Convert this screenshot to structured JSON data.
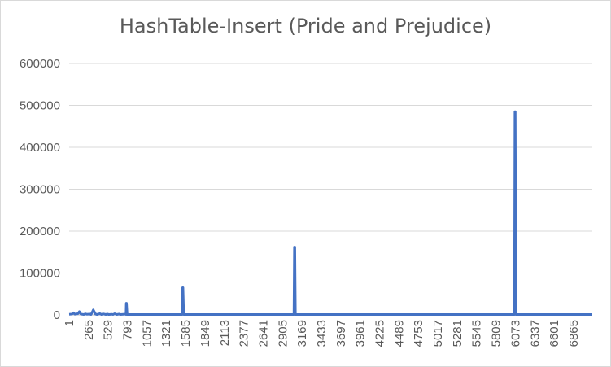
{
  "chart_data": {
    "type": "line",
    "title": "HashTable-Insert (Pride and Prejudice)",
    "xlabel": "",
    "ylabel": "",
    "ylim": [
      0,
      600000
    ],
    "y_ticks": [
      0,
      100000,
      200000,
      300000,
      400000,
      500000,
      600000
    ],
    "y_tick_labels": [
      "0",
      "100000",
      "200000",
      "300000",
      "400000",
      "500000",
      "600000"
    ],
    "xlim": [
      1,
      7120
    ],
    "x_tick_labels": [
      "1",
      "265",
      "529",
      "793",
      "1057",
      "1321",
      "1585",
      "1849",
      "2113",
      "2377",
      "2641",
      "2905",
      "3169",
      "3433",
      "3697",
      "3961",
      "4225",
      "4489",
      "4753",
      "5017",
      "5281",
      "5545",
      "5809",
      "6073",
      "6337",
      "6601",
      "6865"
    ],
    "grid": true,
    "legend": "none",
    "color": "#4472c4",
    "series": [
      {
        "x": [
          1,
          40,
          60,
          80,
          120,
          140,
          160,
          200,
          220,
          240,
          280,
          300,
          330,
          360,
          380,
          420,
          440,
          460,
          500,
          520,
          540,
          580,
          600,
          620,
          650,
          680,
          700,
          740,
          760,
          775,
          778,
          782,
          790,
          800,
          820,
          1000,
          1200,
          1500,
          1540,
          1545,
          1550,
          1560,
          1580,
          1600,
          2000,
          2500,
          3000,
          3060,
          3067,
          3072,
          3080,
          3100,
          3500,
          4500,
          5500,
          6000,
          6060,
          6067,
          6072,
          6080,
          6100,
          6500,
          7120
        ],
        "y": [
          1500,
          2000,
          5000,
          1500,
          3000,
          8000,
          2000,
          1000,
          2500,
          1500,
          2000,
          1000,
          12000,
          2000,
          1000,
          3000,
          1000,
          2500,
          1000,
          2000,
          1000,
          1500,
          1000,
          3000,
          1000,
          2000,
          1000,
          1500,
          2000,
          1000,
          28000,
          28000,
          1000,
          1000,
          1000,
          1000,
          1000,
          1000,
          1000,
          65000,
          65000,
          1000,
          1000,
          1000,
          1000,
          1000,
          1000,
          1000,
          162000,
          162000,
          1000,
          1000,
          1000,
          1000,
          1000,
          1000,
          1000,
          485000,
          485000,
          1000,
          1000,
          1000,
          1000
        ]
      }
    ]
  }
}
